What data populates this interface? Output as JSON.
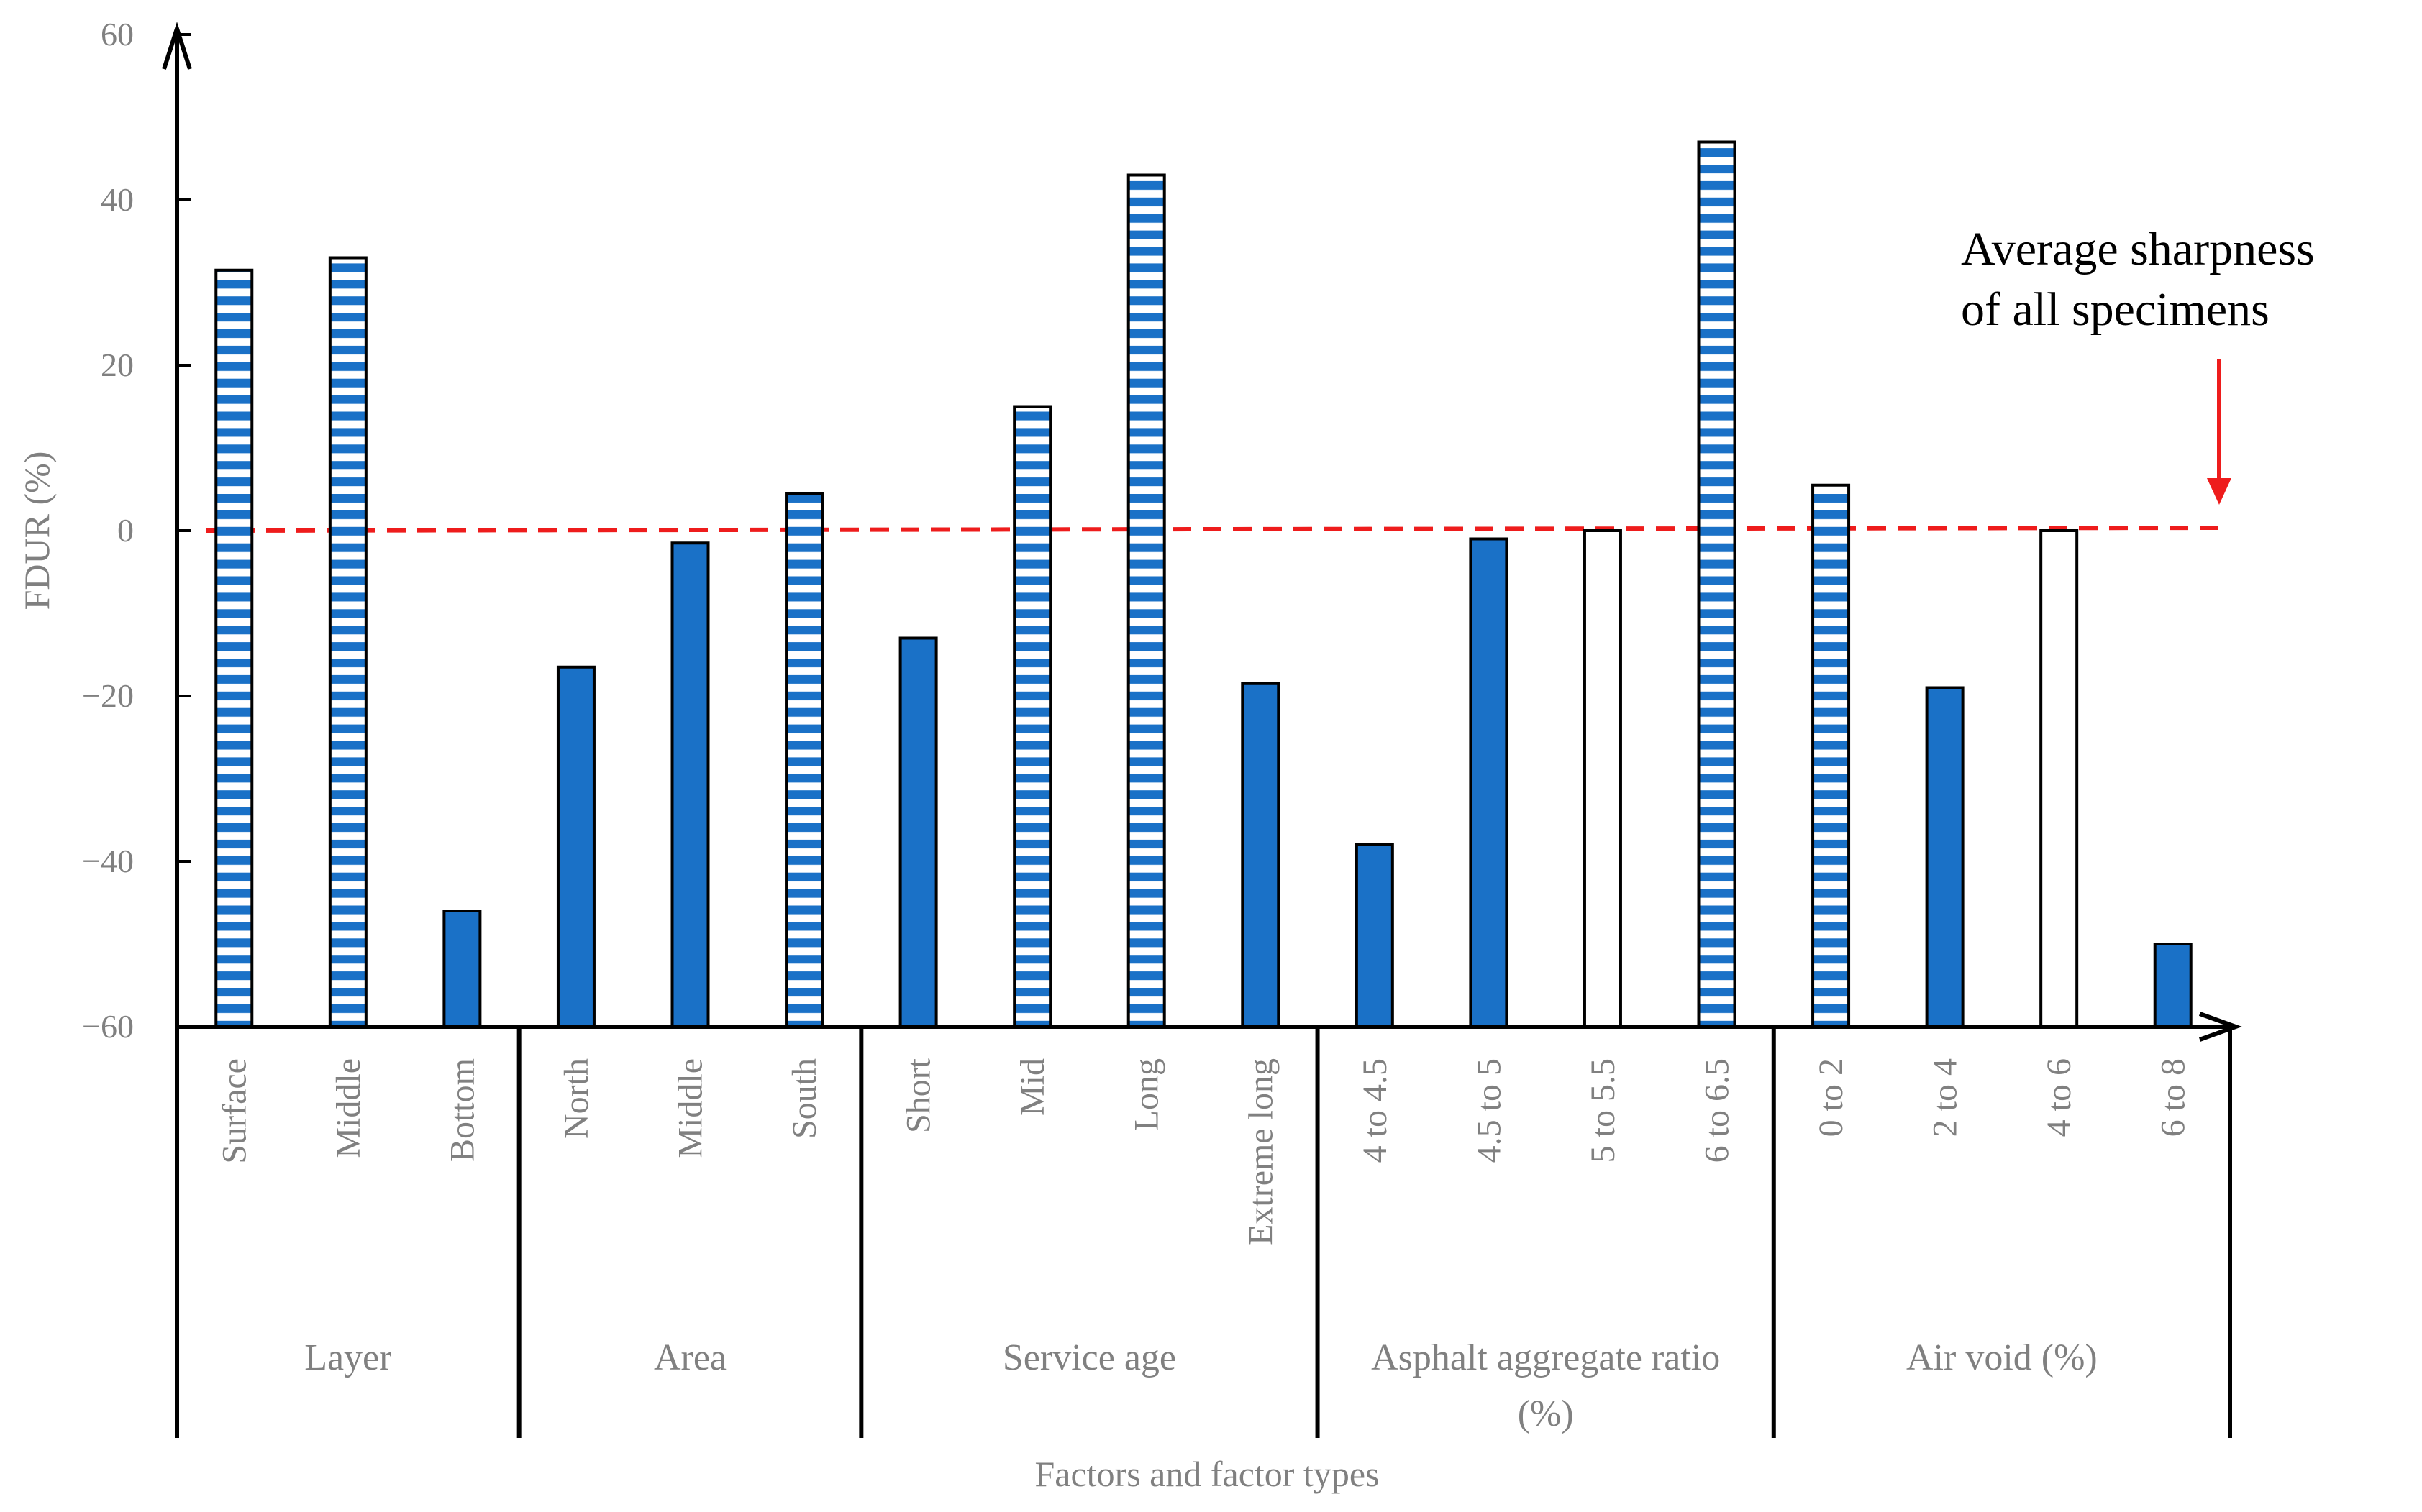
{
  "chart_data": {
    "type": "bar",
    "ylabel": "FDUR (%)",
    "xlabel": "Factors and factor types",
    "ylim": [
      -60,
      60
    ],
    "yticks": [
      "60",
      "40",
      "20",
      "0",
      "−20",
      "−40",
      "−60"
    ],
    "ytick_values": [
      60,
      40,
      20,
      0,
      -20,
      -40,
      -60
    ],
    "groups": [
      {
        "name": "Layer",
        "categories": [
          {
            "label": "Surface",
            "value": 31.5,
            "style": "striped"
          },
          {
            "label": "Middle",
            "value": 33,
            "style": "striped"
          },
          {
            "label": "Bottom",
            "value": -46,
            "style": "solid"
          }
        ]
      },
      {
        "name": "Area",
        "categories": [
          {
            "label": "North",
            "value": -16.5,
            "style": "solid"
          },
          {
            "label": "Middle",
            "value": -1.5,
            "style": "solid"
          },
          {
            "label": "South",
            "value": 4.5,
            "style": "striped"
          }
        ]
      },
      {
        "name": "Service age",
        "categories": [
          {
            "label": "Short",
            "value": -13,
            "style": "solid"
          },
          {
            "label": "Mid",
            "value": 15,
            "style": "striped"
          },
          {
            "label": "Long",
            "value": 43,
            "style": "striped"
          },
          {
            "label": "Extreme long",
            "value": -18.5,
            "style": "solid"
          }
        ]
      },
      {
        "name": "Asphalt aggregate ratio (%)",
        "categories": [
          {
            "label": "4 to 4.5",
            "value": -38,
            "style": "solid"
          },
          {
            "label": "4.5 to 5",
            "value": -1,
            "style": "solid"
          },
          {
            "label": "5 to 5.5",
            "value": 0,
            "style": "empty"
          },
          {
            "label": "6 to 6.5",
            "value": 47,
            "style": "striped"
          }
        ]
      },
      {
        "name": "Air void (%)",
        "categories": [
          {
            "label": "0 to 2",
            "value": 5.5,
            "style": "striped"
          },
          {
            "label": "2 to 4",
            "value": -19,
            "style": "solid"
          },
          {
            "label": "4 to 6",
            "value": 0,
            "style": "empty"
          },
          {
            "label": "6 to 8",
            "value": -50,
            "style": "solid"
          }
        ]
      }
    ],
    "reference_line": {
      "label": "Average sharpness of all specimens",
      "label_lines": [
        "Average sharpness",
        "of all specimens"
      ],
      "value": 0,
      "style": "dashed"
    },
    "colors": {
      "bar": "#1a71c7",
      "reference": "#ee1c1c",
      "axis": "#000000",
      "text": "#808080"
    }
  }
}
